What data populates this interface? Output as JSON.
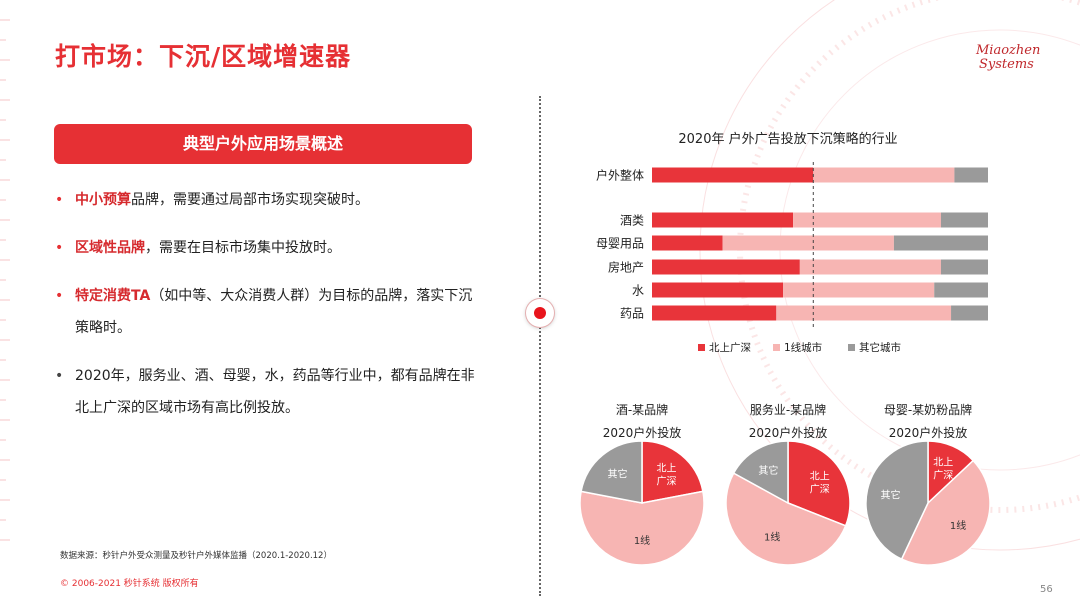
{
  "slide": {
    "title": "打市场：下沉/区域增速器",
    "logo_line1": "Miaozhen",
    "logo_line2": "Systems",
    "banner": "典型户外应用场景概述",
    "bullets": [
      {
        "highlight": "中小预算",
        "text": "品牌，需要通过局部市场实现突破时。"
      },
      {
        "highlight": "区域性品牌",
        "text": "，需要在目标市场集中投放时。"
      },
      {
        "highlight": "特定消费TA",
        "text": "（如中等、大众消费人群）为目标的品牌，落实下沉策略时。"
      },
      {
        "highlight": "",
        "text": "2020年，服务业、酒、母婴，水，药品等行业中，都有品牌在非北上广深的区域市场有高比例投放。"
      }
    ],
    "source": "数据来源：秒针户外受众测量及秒针户外媒体监播（2020.1-2020.12）",
    "copyright": "© 2006-2021 秒针系统 版权所有",
    "page_number": "56"
  },
  "colors": {
    "accent": "#e63034",
    "tier1": "#e8343a",
    "tier2": "#f7b5b3",
    "other": "#9a9a9a"
  },
  "chart_data": [
    {
      "type": "bar",
      "orientation": "horizontal",
      "stacked": true,
      "percent": true,
      "title": "2020年 户外广告投放下沉策略的行业",
      "categories": [
        "户外整体",
        "酒类",
        "母婴用品",
        "房地产",
        "水",
        "药品"
      ],
      "series": [
        {
          "name": "北上广深",
          "values": [
            48,
            42,
            21,
            44,
            39,
            37
          ]
        },
        {
          "name": "1线城市",
          "values": [
            42,
            44,
            51,
            42,
            45,
            52
          ]
        },
        {
          "name": "其它城市",
          "values": [
            10,
            14,
            28,
            14,
            16,
            11
          ]
        }
      ],
      "xlim": [
        0,
        100
      ],
      "reference_line": 48,
      "legend": "bottom"
    },
    {
      "type": "pie",
      "title": "酒-某品牌",
      "subtitle": "2020户外投放",
      "slices": [
        {
          "label": "北上广深",
          "value": 22
        },
        {
          "label": "1线",
          "value": 56
        },
        {
          "label": "其它",
          "value": 22
        }
      ]
    },
    {
      "type": "pie",
      "title": "服务业-某品牌",
      "subtitle": "2020户外投放",
      "slices": [
        {
          "label": "北上广深",
          "value": 31
        },
        {
          "label": "1线",
          "value": 52
        },
        {
          "label": "其它",
          "value": 17
        }
      ]
    },
    {
      "type": "pie",
      "title": "母婴-某奶粉品牌",
      "subtitle": "2020户外投放",
      "slices": [
        {
          "label": "北上广深",
          "value": 13
        },
        {
          "label": "1线",
          "value": 44
        },
        {
          "label": "其它",
          "value": 43
        }
      ]
    }
  ]
}
